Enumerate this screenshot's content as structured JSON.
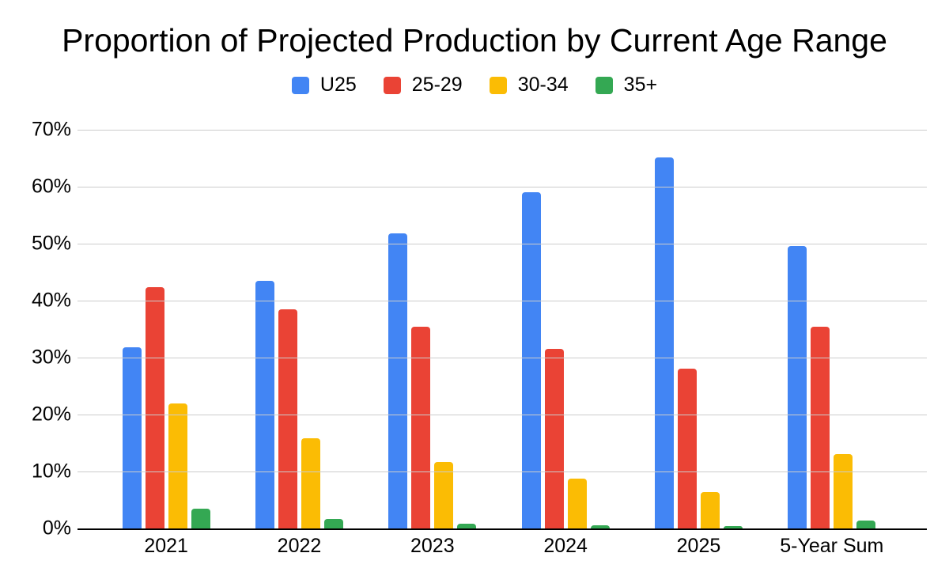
{
  "title": "Proportion of Projected Production by Current Age Range",
  "colors": {
    "background": "#FFFFFF",
    "text": "#000000",
    "gridline": "#CCCCCC",
    "axis_line": "#000000",
    "series_blue": "#4285F4",
    "series_red": "#EA4335",
    "series_yellow": "#FBBC04",
    "series_green": "#34A853"
  },
  "chart_data": {
    "type": "bar",
    "title": "Proportion of Projected Production by Current Age Range",
    "categories": [
      "2021",
      "2022",
      "2023",
      "2024",
      "2025",
      "5-Year Sum"
    ],
    "series": [
      {
        "name": "U25",
        "color": "#4285F4",
        "values": [
          31.8,
          43.5,
          51.8,
          59.0,
          65.1,
          49.6
        ]
      },
      {
        "name": "25-29",
        "color": "#EA4335",
        "values": [
          42.4,
          38.5,
          35.4,
          31.5,
          28.0,
          35.4
        ]
      },
      {
        "name": "30-34",
        "color": "#FBBC04",
        "values": [
          21.9,
          15.9,
          11.7,
          8.7,
          6.4,
          13.1
        ]
      },
      {
        "name": "35+",
        "color": "#34A853",
        "values": [
          3.5,
          1.7,
          0.9,
          0.6,
          0.4,
          1.4
        ]
      }
    ],
    "xlabel": "",
    "ylabel": "",
    "y_ticks": [
      "0%",
      "10%",
      "20%",
      "30%",
      "40%",
      "50%",
      "60%",
      "70%"
    ],
    "ylim": [
      0,
      70
    ],
    "grid": true,
    "legend_position": "top"
  }
}
